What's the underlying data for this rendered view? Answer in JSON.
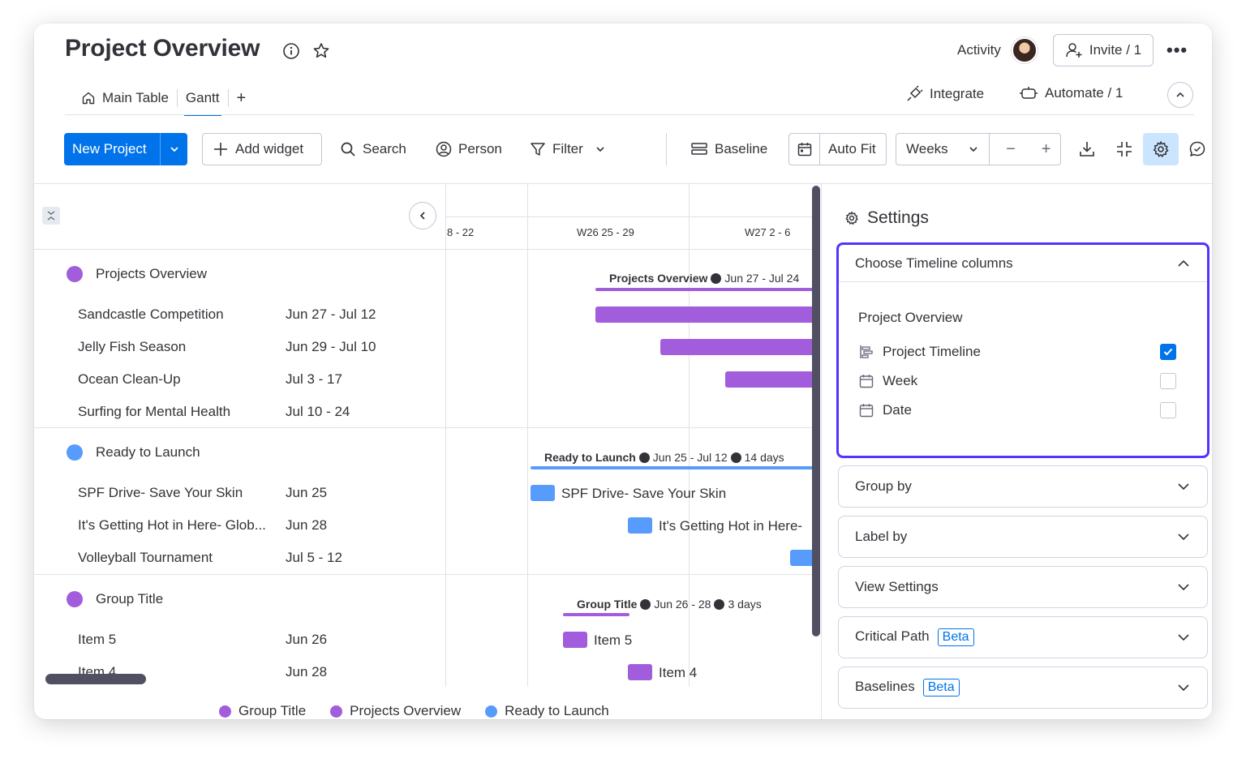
{
  "header": {
    "title": "Project Overview",
    "activity_label": "Activity",
    "invite_label": "Invite / 1",
    "more_label": "•••"
  },
  "tabs": {
    "main_table": "Main Table",
    "gantt": "Gantt",
    "add": "+",
    "integrate": "Integrate",
    "automate": "Automate / 1"
  },
  "toolbar": {
    "new_project": "New Project",
    "add_widget": "Add widget",
    "search": "Search",
    "person": "Person",
    "filter": "Filter",
    "baseline": "Baseline",
    "auto_fit": "Auto Fit",
    "weeks": "Weeks",
    "minus": "−",
    "plus": "+"
  },
  "gantt": {
    "weeks": [
      "8 - 22",
      "W26 25 - 29",
      "W27 2 - 6"
    ],
    "groups": [
      {
        "name": "Projects Overview",
        "color": "#a25ddc",
        "bar_title": "Projects Overview",
        "bar_range": "Jun 27 - Jul 24",
        "items": [
          {
            "name": "Sandcastle Competition",
            "date": "Jun 27 - Jul 12"
          },
          {
            "name": "Jelly Fish Season",
            "date": "Jun 29 - Jul 10"
          },
          {
            "name": "Ocean Clean-Up",
            "date": "Jul 3 - 17"
          },
          {
            "name": "Surfing for Mental Health",
            "date": "Jul 10 - 24"
          }
        ]
      },
      {
        "name": "Ready to Launch",
        "color": "#579bfc",
        "bar_title": "Ready to Launch",
        "bar_range": "Jun 25 - Jul 12",
        "bar_days": "14 days",
        "items": [
          {
            "name": "SPF Drive- Save Your Skin",
            "date": "Jun 25",
            "bar_label": "SPF Drive- Save Your Skin"
          },
          {
            "name": "It's Getting Hot in Here- Glob...",
            "date": "Jun 28",
            "bar_label": "It's Getting Hot in Here-"
          },
          {
            "name": "Volleyball Tournament",
            "date": "Jul 5 - 12"
          }
        ]
      },
      {
        "name": "Group Title",
        "color": "#a25ddc",
        "bar_title": "Group Title",
        "bar_range": "Jun 26 - 28",
        "bar_days": "3 days",
        "items": [
          {
            "name": "Item 5",
            "date": "Jun 26",
            "bar_label": "Item 5"
          },
          {
            "name": "Item 4",
            "date": "Jun 28",
            "bar_label": "Item 4"
          }
        ]
      }
    ]
  },
  "legend": [
    "Group Title",
    "Projects Overview",
    "Ready to Launch"
  ],
  "settings": {
    "title": "Settings",
    "timeline_columns": {
      "label": "Choose Timeline columns",
      "group": "Project Overview",
      "columns": [
        {
          "name": "Project Timeline",
          "checked": true
        },
        {
          "name": "Week",
          "checked": false
        },
        {
          "name": "Date",
          "checked": false
        }
      ]
    },
    "group_by": "Group by",
    "label_by": "Label by",
    "view_settings": "View Settings",
    "critical_path": "Critical Path",
    "baselines": "Baselines",
    "beta": "Beta"
  },
  "colors": {
    "accent": "#0073ea",
    "purple": "#a25ddc",
    "blue": "#579bfc",
    "focus": "#5034ff"
  }
}
